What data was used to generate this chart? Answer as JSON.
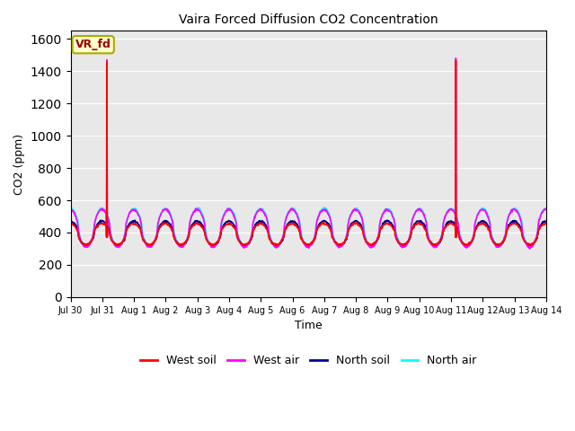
{
  "title": "Vaira Forced Diffusion CO2 Concentration",
  "xlabel": "Time",
  "ylabel": "CO2 (ppm)",
  "ylim": [
    0,
    1650
  ],
  "yticks": [
    0,
    200,
    400,
    600,
    800,
    1000,
    1200,
    1400,
    1600
  ],
  "bg_color": "#e8e8e8",
  "legend_label": "VR_fd",
  "legend_box_color": "#ffffcc",
  "legend_box_edge": "#aaaa00",
  "series": {
    "west_soil": {
      "color": "#ff0000",
      "label": "West soil",
      "lw": 1.2
    },
    "west_air": {
      "color": "#ff00ff",
      "label": "West air",
      "lw": 1.2
    },
    "north_soil": {
      "color": "#00008b",
      "label": "North soil",
      "lw": 1.2
    },
    "north_air": {
      "color": "#00ffff",
      "label": "North air",
      "lw": 1.2
    }
  },
  "spike1_day": 1.15,
  "spike1_val_air": 1470,
  "spike1_val_soil": 1460,
  "spike2_day": 12.15,
  "spike2_val_air": 1480,
  "spike2_val_soil": 1465,
  "tick_labels": [
    "Jul 30",
    "Jul 31",
    "Aug 1",
    "Aug 2",
    "Aug 3",
    "Aug 4",
    "Aug 5",
    "Aug 6",
    "Aug 7",
    "Aug 8",
    "Aug 9",
    "Aug 10",
    "Aug 11",
    "Aug 12",
    "Aug 13",
    "Aug 14"
  ],
  "tick_positions": [
    0,
    1,
    2,
    3,
    4,
    5,
    6,
    7,
    8,
    9,
    10,
    11,
    12,
    13,
    14,
    15
  ]
}
